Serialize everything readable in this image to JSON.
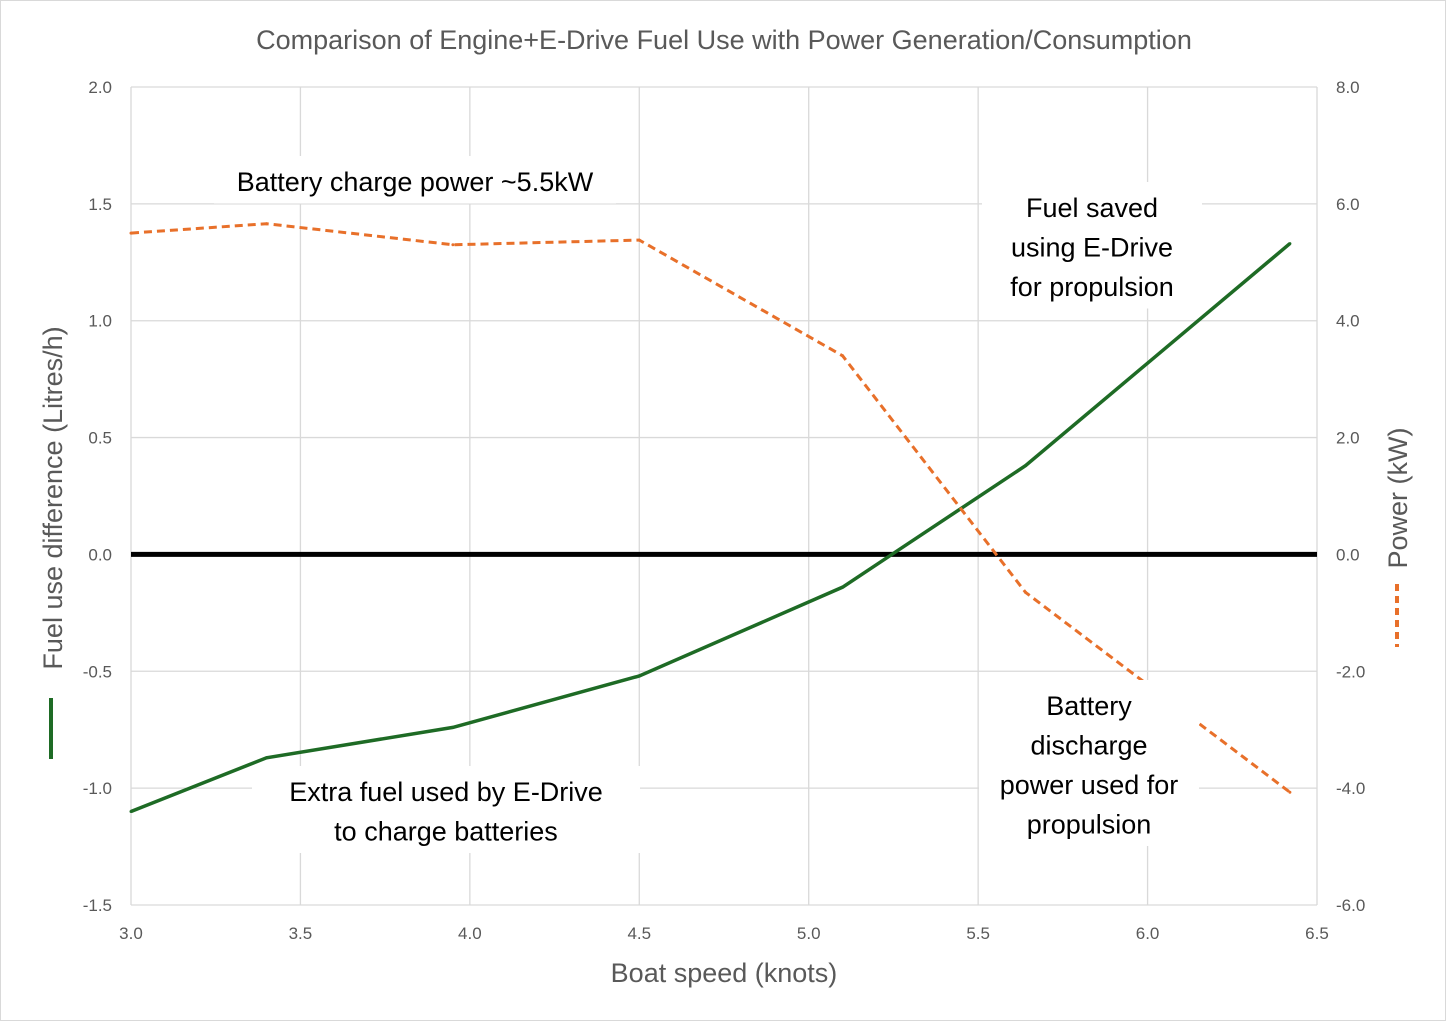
{
  "chart_data": {
    "type": "line",
    "title": "Comparison of Engine+E-Drive Fuel Use with Power Generation/Consumption",
    "xlabel": "Boat speed (knots)",
    "ylabel": "Fuel use difference (Litres/h)",
    "y2label": "Power (kW)",
    "xlim": [
      3.0,
      6.5
    ],
    "ylim": [
      -1.5,
      2.0
    ],
    "y2lim": [
      -6.0,
      8.0
    ],
    "xticks": [
      "3.0",
      "3.5",
      "4.0",
      "4.5",
      "5.0",
      "5.5",
      "6.0",
      "6.5"
    ],
    "yticks": [
      "-1.5",
      "-1.0",
      "-0.5",
      "0.0",
      "0.5",
      "1.0",
      "1.5",
      "2.0"
    ],
    "y2ticks": [
      "-6.0",
      "-4.0",
      "-2.0",
      "0.0",
      "2.0",
      "4.0",
      "6.0",
      "8.0"
    ],
    "grid": true,
    "series": [
      {
        "axis": "left",
        "color": "#1e6b25",
        "style": "solid",
        "x": [
          3.0,
          3.4,
          3.95,
          4.5,
          5.1,
          5.64,
          6.42
        ],
        "y": [
          -1.1,
          -0.87,
          -0.74,
          -0.52,
          -0.14,
          0.38,
          1.33
        ]
      },
      {
        "axis": "right",
        "color": "#e8702a",
        "style": "dashed",
        "x": [
          3.0,
          3.4,
          3.95,
          4.5,
          5.1,
          5.64,
          6.42
        ],
        "y": [
          5.5,
          5.66,
          5.3,
          5.38,
          3.4,
          -0.65,
          -4.07
        ]
      }
    ],
    "zero_line": {
      "y": 0.0,
      "color": "#000000"
    },
    "annotations": [
      {
        "id": "charge",
        "lines": [
          "Battery charge power ~5.5kW"
        ]
      },
      {
        "id": "saved",
        "lines": [
          "Fuel saved",
          "using E-Drive",
          "for propulsion"
        ]
      },
      {
        "id": "discharge",
        "lines": [
          "Battery",
          "discharge",
          "power used for",
          "propulsion"
        ]
      },
      {
        "id": "extra",
        "lines": [
          "Extra fuel used by E-Drive",
          "to charge batteries"
        ]
      }
    ]
  }
}
